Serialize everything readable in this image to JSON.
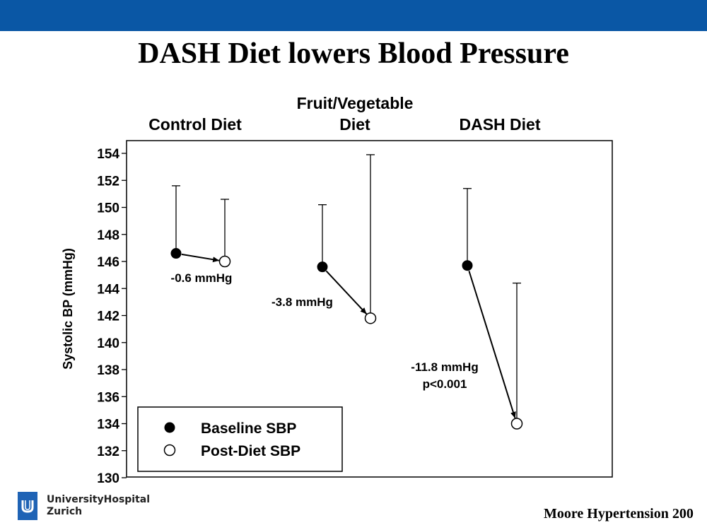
{
  "slide": {
    "title": "DASH Diet lowers Blood Pressure",
    "citation": "Moore Hypertension 200",
    "logo": {
      "icon": "university-hospital-logo-icon",
      "line1": "UniversityHospital",
      "line2": "Zurich"
    },
    "colors": {
      "topbar": "#0a57a5",
      "marker": "#000000"
    }
  },
  "chart_data": {
    "type": "scatter",
    "ylabel": "Systolic BP (mmHg)",
    "ylim": [
      130,
      155
    ],
    "yticks": [
      130,
      132,
      134,
      136,
      138,
      140,
      142,
      144,
      146,
      148,
      150,
      152,
      154
    ],
    "groups": [
      {
        "label": "Control Diet",
        "baseline": 146.6,
        "baseline_upper": 151.6,
        "post": 146.0,
        "post_upper": 150.6,
        "change_label": "-0.6 mmHg",
        "p_label": ""
      },
      {
        "label": "Fruit/Vegetable Diet",
        "baseline": 145.6,
        "baseline_upper": 150.2,
        "post": 141.8,
        "post_upper": 153.9,
        "change_label": "-3.8 mmHg",
        "p_label": ""
      },
      {
        "label": "DASH Diet",
        "baseline": 145.7,
        "baseline_upper": 151.4,
        "post": 134.0,
        "post_upper": 144.4,
        "change_label": "-11.8 mmHg",
        "p_label": "p<0.001"
      }
    ],
    "legend": {
      "position": "bottom-left",
      "entries": [
        {
          "name": "Baseline SBP",
          "marker": "filled-circle"
        },
        {
          "name": "Post-Diet SBP",
          "marker": "open-circle"
        }
      ]
    },
    "grid": false
  }
}
